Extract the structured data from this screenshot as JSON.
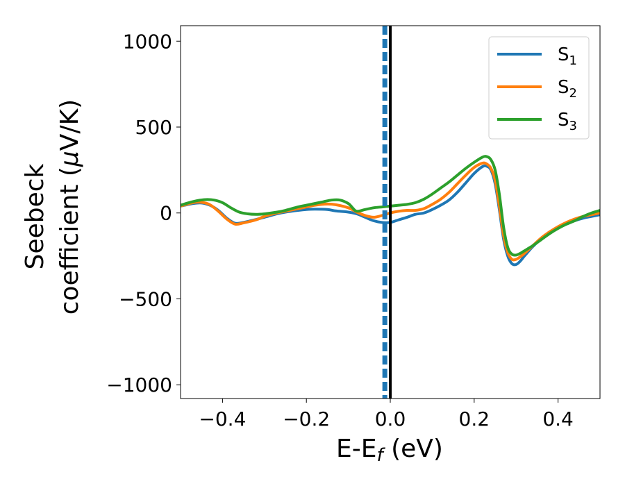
{
  "chart_data": {
    "type": "line",
    "xlabel": {
      "main": "E-E",
      "sub": "f",
      "unit": " (eV)"
    },
    "ylabel": {
      "line1": "Seebeck",
      "line2_pre": "coefficient  (",
      "mu": "μ",
      "line2_post": "V/K)"
    },
    "xlim": [
      -0.5,
      0.5
    ],
    "ylim": [
      -1080,
      1090
    ],
    "xticks": [
      -0.4,
      -0.2,
      0.0,
      0.2,
      0.4
    ],
    "xtick_labels": [
      "−0.4",
      "−0.2",
      "0.0",
      "0.2",
      "0.4"
    ],
    "yticks": [
      -1000,
      -500,
      0,
      500,
      1000
    ],
    "ytick_labels": [
      "−1000",
      "−500",
      "0",
      "500",
      "1000"
    ],
    "grid": false,
    "legend_position": "top-right",
    "vertical_lines": [
      {
        "x": 0.0,
        "color": "#000000",
        "style": "solid"
      },
      {
        "x": -0.013,
        "color": "#1f77b4",
        "style": "dashed"
      }
    ],
    "series": [
      {
        "name": "S",
        "sub": "1",
        "color": "#1f77b4",
        "x": [
          -0.5,
          -0.47,
          -0.45,
          -0.43,
          -0.41,
          -0.39,
          -0.37,
          -0.35,
          -0.32,
          -0.3,
          -0.27,
          -0.25,
          -0.22,
          -0.2,
          -0.18,
          -0.15,
          -0.13,
          -0.1,
          -0.08,
          -0.06,
          -0.04,
          -0.02,
          0.0,
          0.02,
          0.04,
          0.06,
          0.08,
          0.1,
          0.12,
          0.14,
          0.16,
          0.18,
          0.2,
          0.22,
          0.23,
          0.24,
          0.25,
          0.26,
          0.27,
          0.28,
          0.29,
          0.3,
          0.31,
          0.32,
          0.34,
          0.36,
          0.38,
          0.4,
          0.42,
          0.44,
          0.46,
          0.48,
          0.5
        ],
        "y": [
          40,
          55,
          58,
          45,
          15,
          -30,
          -60,
          -55,
          -38,
          -25,
          -5,
          5,
          15,
          20,
          22,
          20,
          12,
          5,
          -5,
          -25,
          -45,
          -55,
          -55,
          -40,
          -25,
          -8,
          0,
          20,
          45,
          75,
          120,
          175,
          230,
          270,
          272,
          250,
          170,
          20,
          -150,
          -250,
          -295,
          -300,
          -280,
          -250,
          -195,
          -150,
          -110,
          -85,
          -65,
          -45,
          -30,
          -20,
          -10
        ]
      },
      {
        "name": "S",
        "sub": "2",
        "color": "#ff7f0e",
        "x": [
          -0.5,
          -0.47,
          -0.45,
          -0.43,
          -0.41,
          -0.39,
          -0.37,
          -0.35,
          -0.32,
          -0.3,
          -0.27,
          -0.25,
          -0.22,
          -0.2,
          -0.18,
          -0.15,
          -0.13,
          -0.1,
          -0.08,
          -0.06,
          -0.04,
          -0.02,
          0.0,
          0.02,
          0.04,
          0.06,
          0.08,
          0.1,
          0.12,
          0.14,
          0.16,
          0.18,
          0.2,
          0.22,
          0.23,
          0.24,
          0.25,
          0.26,
          0.27,
          0.28,
          0.29,
          0.3,
          0.31,
          0.32,
          0.34,
          0.36,
          0.38,
          0.4,
          0.42,
          0.44,
          0.46,
          0.48,
          0.5
        ],
        "y": [
          40,
          60,
          62,
          48,
          10,
          -35,
          -65,
          -58,
          -40,
          -20,
          0,
          10,
          25,
          35,
          45,
          52,
          48,
          30,
          5,
          -15,
          -25,
          -15,
          0,
          10,
          15,
          15,
          25,
          50,
          80,
          120,
          170,
          220,
          265,
          290,
          285,
          260,
          190,
          40,
          -130,
          -230,
          -270,
          -270,
          -255,
          -235,
          -190,
          -145,
          -110,
          -80,
          -55,
          -35,
          -20,
          -10,
          0
        ]
      },
      {
        "name": "S",
        "sub": "3",
        "color": "#2ca02c",
        "x": [
          -0.5,
          -0.48,
          -0.46,
          -0.44,
          -0.42,
          -0.4,
          -0.38,
          -0.36,
          -0.34,
          -0.32,
          -0.3,
          -0.27,
          -0.25,
          -0.22,
          -0.2,
          -0.18,
          -0.16,
          -0.14,
          -0.12,
          -0.1,
          -0.09,
          -0.08,
          -0.06,
          -0.04,
          -0.02,
          0.0,
          0.02,
          0.04,
          0.06,
          0.08,
          0.1,
          0.12,
          0.14,
          0.16,
          0.18,
          0.2,
          0.22,
          0.23,
          0.24,
          0.25,
          0.26,
          0.27,
          0.28,
          0.29,
          0.3,
          0.31,
          0.32,
          0.34,
          0.36,
          0.38,
          0.4,
          0.42,
          0.44,
          0.46,
          0.48,
          0.5
        ],
        "y": [
          45,
          60,
          72,
          78,
          75,
          60,
          30,
          5,
          -5,
          -8,
          -5,
          5,
          15,
          35,
          45,
          55,
          65,
          75,
          75,
          55,
          30,
          10,
          20,
          30,
          35,
          40,
          45,
          50,
          60,
          80,
          110,
          145,
          180,
          220,
          260,
          295,
          325,
          328,
          310,
          250,
          110,
          -80,
          -200,
          -240,
          -245,
          -235,
          -220,
          -190,
          -155,
          -120,
          -90,
          -65,
          -45,
          -20,
          0,
          15
        ]
      }
    ]
  }
}
